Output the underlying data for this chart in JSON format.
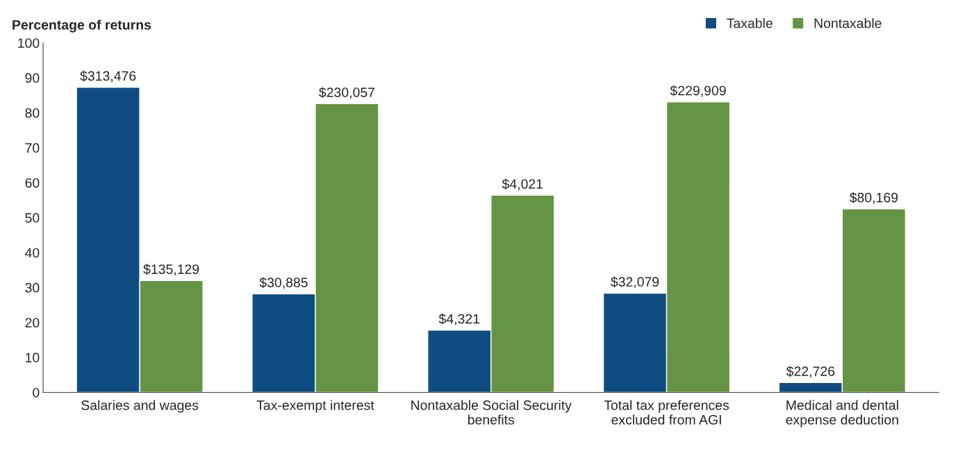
{
  "chart_data": {
    "type": "bar",
    "ylabel": "Percentage of returns",
    "categories": [
      "Salaries and wages",
      "Tax-exempt interest",
      "Nontaxable Social Security\nbenefits",
      "Total tax preferences\nexcluded from AGI",
      "Medical and dental\nexpense deduction"
    ],
    "series": [
      {
        "name": "Taxable",
        "color": "#0f4c81",
        "values": [
          87.3,
          28.2,
          17.8,
          28.4,
          2.8
        ]
      },
      {
        "name": "Nontaxable",
        "color": "#669445",
        "values": [
          32.0,
          82.6,
          56.4,
          83.1,
          52.5
        ]
      }
    ],
    "annotations": [
      {
        "text": "$313,476",
        "x": "Salaries and wages",
        "y": 87.3
      },
      {
        "text": "$30,885",
        "x": "Tax-exempt interest",
        "y": 28.2
      },
      {
        "text": "$4,321",
        "x": "Nontaxable Social Security\nbenefits",
        "y": 17.8
      },
      {
        "text": "$32,079",
        "x": "Total tax preferences\nexcluded from AGI",
        "y": 28.4
      },
      {
        "text": "$22,726",
        "x": "Medical and dental\nexpense deduction",
        "y": 2.8
      },
      {
        "text": "$135,129",
        "x": "Salaries and wages",
        "y": 32.0
      },
      {
        "text": "$230,057",
        "x": "Tax-exempt interest",
        "y": 82.6
      },
      {
        "text": "$4,021",
        "x": "Nontaxable Social Security\nbenefits",
        "y": 56.4
      },
      {
        "text": "$229,909",
        "x": "Total tax preferences\nexcluded from AGI",
        "y": 83.1
      },
      {
        "text": "$80,169",
        "x": "Medical and dental\nexpense deduction",
        "y": 52.5
      }
    ],
    "ylim": [
      0,
      100
    ],
    "yticks": [
      0,
      10,
      20,
      30,
      40,
      50,
      60,
      70,
      80,
      90,
      100
    ],
    "grid": false,
    "legend": "top right"
  }
}
